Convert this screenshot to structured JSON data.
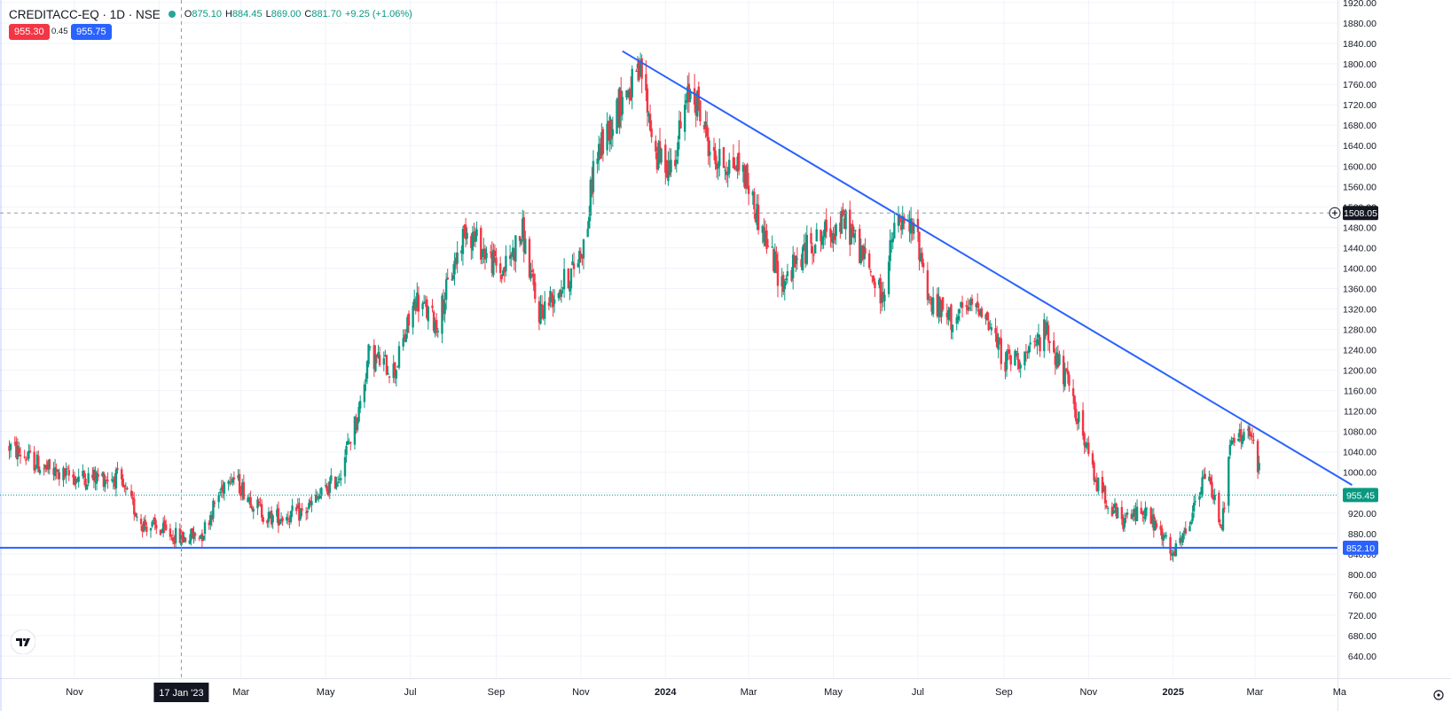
{
  "header": {
    "symbol": "CREDITACC-EQ · 1D · NSE",
    "status_icon": "market-open-dot-icon",
    "open_label": "O",
    "open_value": "875.10",
    "high_label": "H",
    "high_value": "884.45",
    "low_label": "L",
    "low_value": "869.00",
    "close_label": "C",
    "close_value": "881.70",
    "change": "+9.25 (+1.06%)"
  },
  "quote": {
    "bid": "955.30",
    "spread": "0.45",
    "ask": "955.75"
  },
  "crosshair": {
    "date_label": "17 Jan '23",
    "price_label": "1508.05",
    "price": 1508.05,
    "date": "2023-01-17"
  },
  "markers": {
    "last_price": {
      "label": "955.45",
      "value": 955.45
    },
    "support": {
      "label": "852.10",
      "value": 852.1
    }
  },
  "colors": {
    "up": "#089981",
    "down": "#f23645",
    "trendline": "#2962ff",
    "grid": "#f0f3fa",
    "bid": "#f23645",
    "ask": "#2962ff",
    "last": "#089981"
  },
  "chart_data": {
    "type": "candlestick",
    "ylim": [
      640,
      1920
    ],
    "yticks": [
      640,
      680,
      720,
      760,
      800,
      840,
      880,
      920,
      960,
      1000,
      1040,
      1080,
      1120,
      1160,
      1200,
      1240,
      1280,
      1320,
      1360,
      1400,
      1440,
      1480,
      1520,
      1560,
      1600,
      1640,
      1680,
      1720,
      1760,
      1800,
      1840,
      1880,
      1920
    ],
    "x_tick_labels": [
      "Nov",
      "20",
      "Mar",
      "May",
      "Jul",
      "Sep",
      "Nov",
      "2024",
      "Mar",
      "May",
      "Jul",
      "Sep",
      "Nov",
      "2025",
      "Mar",
      "Ma"
    ],
    "x_tick_dates": [
      "2022-11-01",
      "2023-01-01",
      "2023-03-01",
      "2023-05-01",
      "2023-07-01",
      "2023-09-01",
      "2023-11-01",
      "2024-01-01",
      "2024-03-01",
      "2024-05-01",
      "2024-07-01",
      "2024-09-01",
      "2024-11-01",
      "2025-01-01",
      "2025-03-01",
      "2025-05-01"
    ],
    "xlim": [
      "2022-09-15",
      "2025-05-31"
    ],
    "price_anchors": [
      [
        "2022-09-15",
        1050
      ],
      [
        "2022-10-15",
        1000
      ],
      [
        "2022-11-01",
        990
      ],
      [
        "2022-12-01",
        990
      ],
      [
        "2022-12-20",
        900
      ],
      [
        "2023-01-17",
        870
      ],
      [
        "2023-02-01",
        880
      ],
      [
        "2023-02-20",
        1000
      ],
      [
        "2023-03-20",
        910
      ],
      [
        "2023-04-15",
        920
      ],
      [
        "2023-05-10",
        990
      ],
      [
        "2023-05-25",
        1120
      ],
      [
        "2023-06-01",
        1230
      ],
      [
        "2023-06-20",
        1200
      ],
      [
        "2023-07-05",
        1340
      ],
      [
        "2023-07-20",
        1290
      ],
      [
        "2023-08-10",
        1480
      ],
      [
        "2023-09-05",
        1390
      ],
      [
        "2023-09-20",
        1470
      ],
      [
        "2023-10-01",
        1310
      ],
      [
        "2023-10-25",
        1390
      ],
      [
        "2023-11-05",
        1460
      ],
      [
        "2023-11-10",
        1600
      ],
      [
        "2023-11-30",
        1730
      ],
      [
        "2023-12-15",
        1780
      ],
      [
        "2023-12-25",
        1620
      ],
      [
        "2024-01-05",
        1600
      ],
      [
        "2024-01-20",
        1760
      ],
      [
        "2024-02-05",
        1610
      ],
      [
        "2024-02-25",
        1600
      ],
      [
        "2024-03-10",
        1480
      ],
      [
        "2024-03-25",
        1370
      ],
      [
        "2024-04-15",
        1450
      ],
      [
        "2024-05-10",
        1490
      ],
      [
        "2024-05-25",
        1410
      ],
      [
        "2024-06-05",
        1340
      ],
      [
        "2024-06-15",
        1490
      ],
      [
        "2024-06-30",
        1470
      ],
      [
        "2024-07-10",
        1330
      ],
      [
        "2024-07-25",
        1300
      ],
      [
        "2024-08-15",
        1330
      ],
      [
        "2024-09-01",
        1220
      ],
      [
        "2024-09-20",
        1230
      ],
      [
        "2024-10-01",
        1280
      ],
      [
        "2024-10-20",
        1150
      ],
      [
        "2024-11-05",
        990
      ],
      [
        "2024-11-25",
        900
      ],
      [
        "2024-12-10",
        930
      ],
      [
        "2024-12-25",
        870
      ],
      [
        "2025-01-01",
        835
      ],
      [
        "2025-01-10",
        880
      ],
      [
        "2025-01-25",
        1000
      ],
      [
        "2025-02-05",
        900
      ],
      [
        "2025-02-12",
        1060
      ],
      [
        "2025-02-25",
        1080
      ],
      [
        "2025-03-05",
        990
      ],
      [
        "2025-03-10",
        880
      ],
      [
        "2025-03-14",
        955
      ]
    ],
    "trendline": {
      "from": [
        "2023-12-01",
        1825
      ],
      "to": [
        "2025-05-10",
        975
      ]
    },
    "support_line": 852.1
  }
}
